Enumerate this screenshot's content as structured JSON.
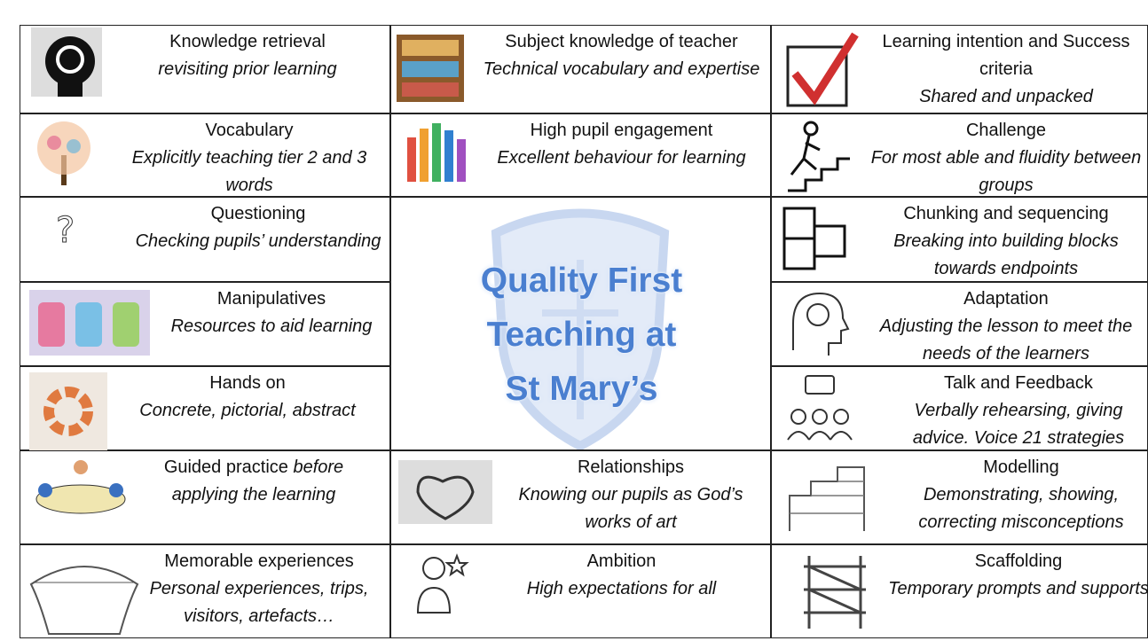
{
  "cells": [
    {
      "title": "Knowledge retrieval",
      "subtitle": "revisiting prior learning"
    },
    {
      "title": "Subject knowledge of teacher",
      "subtitle": "Technical vocabulary and expertise"
    },
    {
      "title": "Learning intention and Success criteria",
      "subtitle": "Shared and unpacked"
    },
    {
      "title": "Vocabulary",
      "subtitle": "Explicitly teaching tier 2 and 3 words"
    },
    {
      "title": "High pupil engagement",
      "subtitle": "Excellent behaviour for learning"
    },
    {
      "title": "Challenge",
      "subtitle": "For most able and fluidity between groups"
    },
    {
      "title": "Questioning",
      "subtitle": "Checking pupils’ understanding"
    },
    {
      "title": "Chunking and sequencing",
      "subtitle": "Breaking into building blocks towards endpoints"
    },
    {
      "title": "Manipulatives",
      "subtitle": "Resources to aid learning"
    },
    {
      "title": "Adaptation",
      "subtitle": "Adjusting the lesson to meet the needs of the learners"
    },
    {
      "title": "Hands on",
      "subtitle": "Concrete, pictorial, abstract"
    },
    {
      "title": "Talk and Feedback",
      "subtitle": "Verbally rehearsing, giving advice. Voice 21 strategies"
    },
    {
      "title": "Guided practice",
      "subtitle": "before applying the learning"
    },
    {
      "title": "Relationships",
      "subtitle": "Knowing our pupils as God’s works of art"
    },
    {
      "title": "Modelling",
      "subtitle": "Demonstrating, showing, correcting misconceptions"
    },
    {
      "title": "Memorable experiences",
      "subtitle": "Personal experiences, trips, visitors, artefacts…"
    },
    {
      "title": "Ambition",
      "subtitle": "High expectations for all"
    },
    {
      "title": "Scaffolding",
      "subtitle": "Temporary prompts and supports"
    }
  ],
  "center": {
    "lines": [
      "Quality First",
      "Teaching at",
      "St Mary’s"
    ]
  }
}
